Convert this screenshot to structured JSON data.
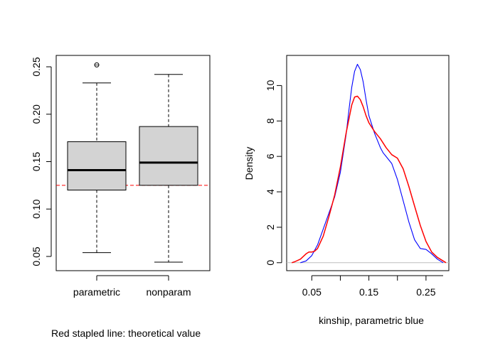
{
  "caption": "Red stapled line: theoretical value",
  "chart_data": [
    {
      "type": "box",
      "categories": [
        "parametric",
        "nonparam"
      ],
      "ylim": [
        0.035,
        0.262
      ],
      "y_ticks": [
        "0.05",
        "0.10",
        "0.15",
        "0.20",
        "0.25"
      ],
      "boxes": [
        {
          "name": "parametric",
          "whisker_low": 0.054,
          "q1": 0.12,
          "median": 0.141,
          "q3": 0.171,
          "whisker_high": 0.233,
          "outliers": [
            0.252
          ]
        },
        {
          "name": "nonparam",
          "whisker_low": 0.044,
          "q1": 0.125,
          "median": 0.149,
          "q3": 0.187,
          "whisker_high": 0.242,
          "outliers": []
        }
      ],
      "reference_line": {
        "value": 0.125,
        "style": "dashed",
        "color": "#ff0000"
      },
      "box_fill": "#d3d3d3"
    },
    {
      "type": "line",
      "xlabel": "kinship, parametric blue",
      "ylabel": "Density",
      "xlim": [
        0.006,
        0.29
      ],
      "ylim": [
        -0.45,
        11.7
      ],
      "x_ticks": [
        "0.05",
        "0.15",
        "0.25"
      ],
      "y_ticks": [
        "0",
        "2",
        "4",
        "6",
        "8",
        "10"
      ],
      "baseline": {
        "value": 0,
        "color": "#bebebe"
      },
      "series": [
        {
          "color": "#0000ff",
          "x": [
            0.03,
            0.04,
            0.05,
            0.06,
            0.07,
            0.08,
            0.09,
            0.1,
            0.11,
            0.115,
            0.12,
            0.125,
            0.13,
            0.135,
            0.14,
            0.145,
            0.15,
            0.16,
            0.17,
            0.175,
            0.18,
            0.19,
            0.2,
            0.21,
            0.22,
            0.23,
            0.24,
            0.25,
            0.26,
            0.27,
            0.28
          ],
          "y": [
            0.0,
            0.1,
            0.4,
            1.0,
            1.9,
            2.8,
            3.7,
            5.1,
            7.2,
            8.6,
            9.9,
            10.8,
            11.2,
            10.9,
            10.2,
            9.2,
            8.3,
            7.3,
            6.5,
            6.2,
            6.0,
            5.6,
            4.7,
            3.5,
            2.3,
            1.3,
            0.8,
            0.75,
            0.5,
            0.2,
            0.0
          ]
        },
        {
          "color": "#ff0000",
          "x": [
            0.015,
            0.02,
            0.03,
            0.04,
            0.045,
            0.05,
            0.055,
            0.06,
            0.07,
            0.08,
            0.09,
            0.1,
            0.11,
            0.12,
            0.125,
            0.13,
            0.135,
            0.14,
            0.145,
            0.15,
            0.16,
            0.17,
            0.18,
            0.19,
            0.2,
            0.21,
            0.22,
            0.23,
            0.24,
            0.25,
            0.26,
            0.27,
            0.28,
            0.285
          ],
          "y": [
            0.0,
            0.05,
            0.2,
            0.5,
            0.6,
            0.6,
            0.65,
            0.8,
            1.5,
            2.6,
            3.8,
            5.4,
            7.3,
            8.9,
            9.35,
            9.4,
            9.2,
            8.8,
            8.3,
            7.9,
            7.4,
            7.0,
            6.5,
            6.1,
            5.9,
            5.3,
            4.3,
            3.2,
            2.1,
            1.2,
            0.6,
            0.3,
            0.1,
            0.0
          ]
        }
      ]
    }
  ]
}
